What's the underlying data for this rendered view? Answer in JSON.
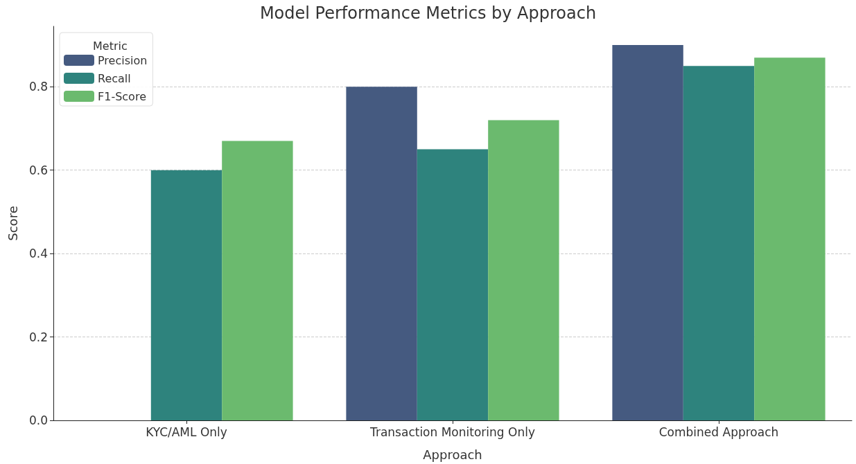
{
  "chart_data": {
    "type": "bar",
    "title": "Model Performance Metrics by Approach",
    "xlabel": "Approach",
    "ylabel": "Score",
    "legend_title": "Metric",
    "categories": [
      "KYC/AML Only",
      "Transaction Monitoring Only",
      "Combined Approach"
    ],
    "series": [
      {
        "name": "Precision",
        "color": "#455a80",
        "values": [
          null,
          0.8,
          0.9
        ]
      },
      {
        "name": "Recall",
        "color": "#2e837d",
        "values": [
          0.6,
          0.65,
          0.85
        ]
      },
      {
        "name": "F1-Score",
        "color": "#6bba6e",
        "values": [
          0.67,
          0.72,
          0.87
        ]
      }
    ],
    "ylim": [
      0,
      0.945
    ],
    "yticks": [
      {
        "value": 0,
        "label": "0.0"
      },
      0.2,
      0.4,
      0.6,
      0.8
    ],
    "grid": "y",
    "legend": "top left"
  }
}
